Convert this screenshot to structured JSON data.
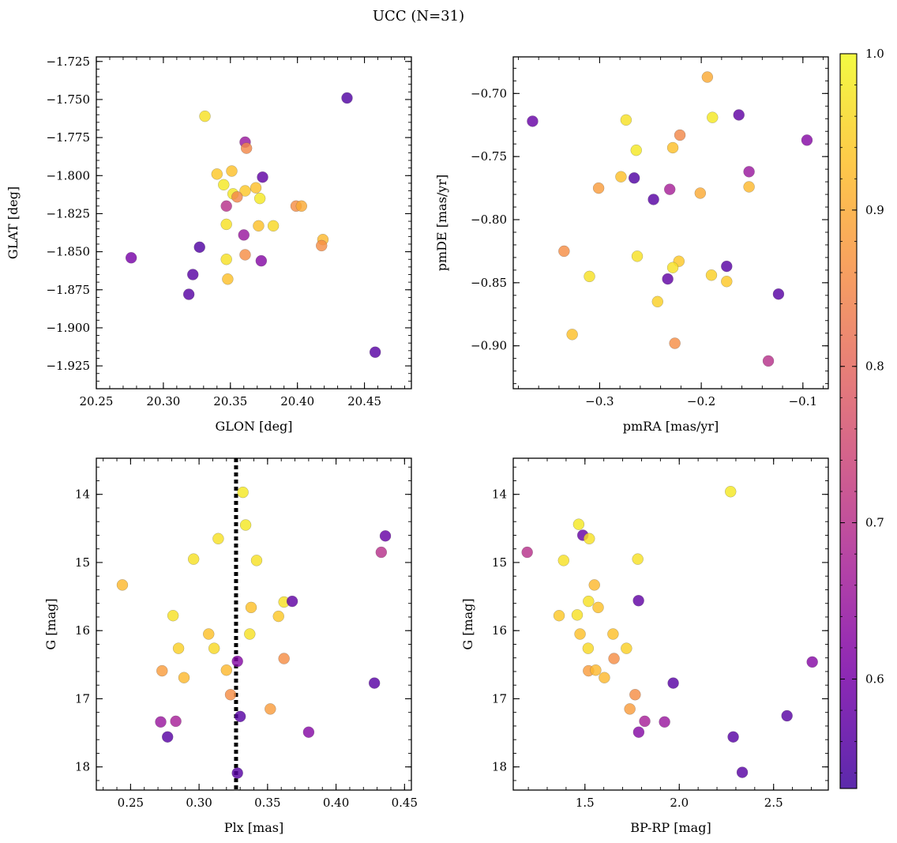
{
  "chart_data": {
    "title": "UCC (N=31)",
    "colorbar": {
      "colormap": "plasma",
      "range": [
        0.53,
        1.0
      ],
      "ticks": [
        0.6,
        0.7,
        0.8,
        0.9,
        1.0
      ],
      "tick_labels": [
        "0.6",
        "0.7",
        "0.8",
        "0.9",
        "1.0"
      ]
    },
    "panels": [
      {
        "type": "scatter",
        "xlabel": "GLON [deg]",
        "ylabel": "GLAT [deg]",
        "xlim": [
          20.25,
          20.485
        ],
        "ylim": [
          -1.94,
          -1.722
        ],
        "y_inverted": false,
        "xticks": [
          20.25,
          20.3,
          20.35,
          20.4,
          20.45
        ],
        "xtick_labels": [
          "20.25",
          "20.30",
          "20.35",
          "20.40",
          "20.45"
        ],
        "yticks": [
          -1.725,
          -1.75,
          -1.775,
          -1.8,
          -1.825,
          -1.85,
          -1.875,
          -1.9,
          -1.925
        ],
        "ytick_labels": [
          "−1.725",
          "−1.750",
          "−1.775",
          "−1.800",
          "−1.825",
          "−1.850",
          "−1.875",
          "−1.900",
          "−1.925"
        ],
        "points": [
          [
            20.331,
            -1.761,
            0.97
          ],
          [
            20.437,
            -1.749,
            0.55
          ],
          [
            20.361,
            -1.778,
            0.65
          ],
          [
            20.362,
            -1.782,
            0.85
          ],
          [
            20.34,
            -1.799,
            0.94
          ],
          [
            20.351,
            -1.797,
            0.93
          ],
          [
            20.374,
            -1.801,
            0.57
          ],
          [
            20.345,
            -1.806,
            0.98
          ],
          [
            20.352,
            -1.812,
            0.98
          ],
          [
            20.361,
            -1.81,
            0.94
          ],
          [
            20.369,
            -1.808,
            0.93
          ],
          [
            20.355,
            -1.814,
            0.85
          ],
          [
            20.372,
            -1.815,
            0.98
          ],
          [
            20.399,
            -1.82,
            0.86
          ],
          [
            20.403,
            -1.82,
            0.9
          ],
          [
            20.347,
            -1.82,
            0.7
          ],
          [
            20.347,
            -1.832,
            0.97
          ],
          [
            20.371,
            -1.833,
            0.93
          ],
          [
            20.382,
            -1.833,
            0.96
          ],
          [
            20.36,
            -1.839,
            0.65
          ],
          [
            20.419,
            -1.842,
            0.92
          ],
          [
            20.418,
            -1.846,
            0.86
          ],
          [
            20.327,
            -1.847,
            0.55
          ],
          [
            20.276,
            -1.854,
            0.6
          ],
          [
            20.361,
            -1.852,
            0.86
          ],
          [
            20.347,
            -1.855,
            0.97
          ],
          [
            20.373,
            -1.856,
            0.62
          ],
          [
            20.322,
            -1.865,
            0.56
          ],
          [
            20.348,
            -1.868,
            0.93
          ],
          [
            20.319,
            -1.878,
            0.56
          ],
          [
            20.458,
            -1.916,
            0.56
          ]
        ]
      },
      {
        "type": "scatter",
        "xlabel": "pmRA [mas/yr]",
        "ylabel": "pmDE [mas/yr]",
        "xlim": [
          -0.385,
          -0.075
        ],
        "ylim": [
          -0.934,
          -0.671
        ],
        "y_inverted": false,
        "xticks": [
          -0.3,
          -0.2,
          -0.1
        ],
        "xtick_labels": [
          "−0.3",
          "−0.2",
          "−0.1"
        ],
        "yticks": [
          -0.7,
          -0.75,
          -0.8,
          -0.85,
          -0.9
        ],
        "ytick_labels": [
          "−0.70",
          "−0.75",
          "−0.80",
          "−0.85",
          "−0.90"
        ],
        "points": [
          [
            -0.194,
            -0.687,
            0.9
          ],
          [
            -0.366,
            -0.722,
            0.58
          ],
          [
            -0.274,
            -0.721,
            0.97
          ],
          [
            -0.189,
            -0.719,
            0.98
          ],
          [
            -0.163,
            -0.717,
            0.57
          ],
          [
            -0.221,
            -0.733,
            0.85
          ],
          [
            -0.096,
            -0.737,
            0.62
          ],
          [
            -0.228,
            -0.743,
            0.93
          ],
          [
            -0.264,
            -0.745,
            0.98
          ],
          [
            -0.153,
            -0.762,
            0.65
          ],
          [
            -0.279,
            -0.766,
            0.93
          ],
          [
            -0.301,
            -0.775,
            0.88
          ],
          [
            -0.231,
            -0.776,
            0.67
          ],
          [
            -0.153,
            -0.774,
            0.92
          ],
          [
            -0.201,
            -0.779,
            0.9
          ],
          [
            -0.247,
            -0.784,
            0.56
          ],
          [
            -0.266,
            -0.767,
            0.55
          ],
          [
            -0.335,
            -0.825,
            0.86
          ],
          [
            -0.263,
            -0.829,
            0.97
          ],
          [
            -0.222,
            -0.833,
            0.94
          ],
          [
            -0.228,
            -0.838,
            0.97
          ],
          [
            -0.175,
            -0.837,
            0.56
          ],
          [
            -0.31,
            -0.845,
            0.97
          ],
          [
            -0.233,
            -0.847,
            0.57
          ],
          [
            -0.19,
            -0.844,
            0.95
          ],
          [
            -0.175,
            -0.849,
            0.94
          ],
          [
            -0.124,
            -0.859,
            0.56
          ],
          [
            -0.243,
            -0.865,
            0.95
          ],
          [
            -0.327,
            -0.891,
            0.93
          ],
          [
            -0.226,
            -0.898,
            0.86
          ],
          [
            -0.134,
            -0.912,
            0.7
          ]
        ]
      },
      {
        "type": "scatter",
        "xlabel": "Plx [mas]",
        "ylabel": "G [mag]",
        "xlim": [
          0.225,
          0.455
        ],
        "ylim": [
          18.34,
          13.47
        ],
        "y_inverted": true,
        "vline": 0.327,
        "xticks": [
          0.25,
          0.3,
          0.35,
          0.4,
          0.45
        ],
        "xtick_labels": [
          "0.25",
          "0.30",
          "0.35",
          "0.40",
          "0.45"
        ],
        "yticks": [
          14,
          15,
          16,
          17,
          18
        ],
        "ytick_labels": [
          "14",
          "15",
          "16",
          "17",
          "18"
        ],
        "points": [
          [
            0.332,
            13.97,
            0.98
          ],
          [
            0.334,
            14.45,
            0.98
          ],
          [
            0.436,
            14.61,
            0.58
          ],
          [
            0.314,
            14.65,
            0.97
          ],
          [
            0.433,
            14.85,
            0.7
          ],
          [
            0.296,
            14.95,
            0.97
          ],
          [
            0.342,
            14.97,
            0.97
          ],
          [
            0.244,
            15.33,
            0.92
          ],
          [
            0.362,
            15.58,
            0.97
          ],
          [
            0.368,
            15.57,
            0.57
          ],
          [
            0.338,
            15.66,
            0.93
          ],
          [
            0.281,
            15.78,
            0.97
          ],
          [
            0.358,
            15.79,
            0.94
          ],
          [
            0.307,
            16.05,
            0.93
          ],
          [
            0.337,
            16.05,
            0.97
          ],
          [
            0.285,
            16.26,
            0.95
          ],
          [
            0.311,
            16.26,
            0.96
          ],
          [
            0.362,
            16.41,
            0.86
          ],
          [
            0.328,
            16.45,
            0.62
          ],
          [
            0.273,
            16.59,
            0.88
          ],
          [
            0.32,
            16.58,
            0.92
          ],
          [
            0.289,
            16.69,
            0.92
          ],
          [
            0.428,
            16.77,
            0.56
          ],
          [
            0.323,
            16.94,
            0.86
          ],
          [
            0.352,
            17.15,
            0.88
          ],
          [
            0.33,
            17.26,
            0.56
          ],
          [
            0.272,
            17.34,
            0.65
          ],
          [
            0.283,
            17.33,
            0.67
          ],
          [
            0.38,
            17.49,
            0.62
          ],
          [
            0.277,
            17.56,
            0.56
          ],
          [
            0.328,
            18.09,
            0.56
          ]
        ]
      },
      {
        "type": "scatter",
        "xlabel": "BP-RP [mag]",
        "ylabel": "G [mag]",
        "xlim": [
          1.12,
          2.79
        ],
        "ylim": [
          18.34,
          13.47
        ],
        "y_inverted": true,
        "xticks": [
          1.5,
          2.0,
          2.5
        ],
        "xtick_labels": [
          "1.5",
          "2.0",
          "2.5"
        ],
        "yticks": [
          14,
          15,
          16,
          17,
          18
        ],
        "ytick_labels": [
          "14",
          "15",
          "16",
          "17",
          "18"
        ],
        "points": [
          [
            2.272,
            13.96,
            0.98
          ],
          [
            1.467,
            14.44,
            0.98
          ],
          [
            1.489,
            14.6,
            0.58
          ],
          [
            1.523,
            14.65,
            0.97
          ],
          [
            1.194,
            14.85,
            0.7
          ],
          [
            1.387,
            14.97,
            0.97
          ],
          [
            1.78,
            14.95,
            0.97
          ],
          [
            1.55,
            15.33,
            0.92
          ],
          [
            1.519,
            15.57,
            0.97
          ],
          [
            1.784,
            15.56,
            0.57
          ],
          [
            1.57,
            15.66,
            0.93
          ],
          [
            1.363,
            15.78,
            0.94
          ],
          [
            1.459,
            15.77,
            0.97
          ],
          [
            1.474,
            16.05,
            0.93
          ],
          [
            1.649,
            16.05,
            0.93
          ],
          [
            1.517,
            16.26,
            0.96
          ],
          [
            1.72,
            16.26,
            0.95
          ],
          [
            1.654,
            16.41,
            0.86
          ],
          [
            2.705,
            16.46,
            0.62
          ],
          [
            1.519,
            16.59,
            0.88
          ],
          [
            1.557,
            16.58,
            0.92
          ],
          [
            1.603,
            16.69,
            0.92
          ],
          [
            1.968,
            16.77,
            0.56
          ],
          [
            1.766,
            16.94,
            0.86
          ],
          [
            1.738,
            17.15,
            0.88
          ],
          [
            2.571,
            17.25,
            0.56
          ],
          [
            1.817,
            17.33,
            0.67
          ],
          [
            1.922,
            17.34,
            0.65
          ],
          [
            1.785,
            17.49,
            0.62
          ],
          [
            2.286,
            17.56,
            0.56
          ],
          [
            2.334,
            18.08,
            0.56
          ]
        ]
      }
    ]
  }
}
